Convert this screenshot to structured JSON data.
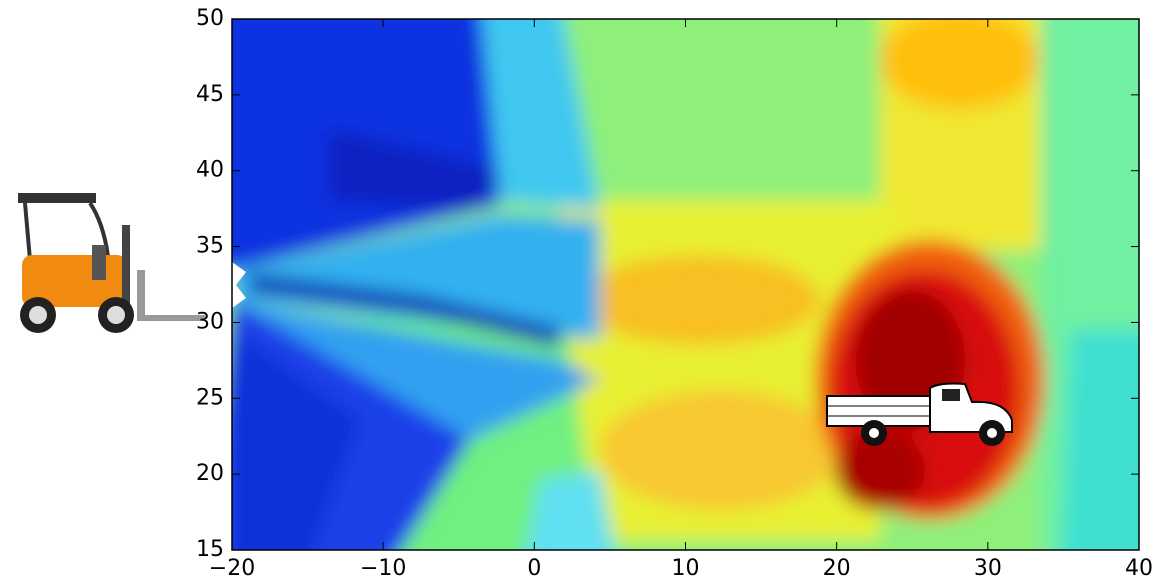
{
  "chart_data": {
    "type": "heatmap",
    "xlim": [
      -20,
      40
    ],
    "ylim": [
      15,
      50
    ],
    "xticks": [
      {
        "value": -20,
        "label": "−20"
      },
      {
        "value": -10,
        "label": "−10"
      },
      0,
      10,
      20,
      30,
      40
    ],
    "yticks": [
      15,
      20,
      25,
      30,
      35,
      40,
      45,
      50
    ]
  }
}
